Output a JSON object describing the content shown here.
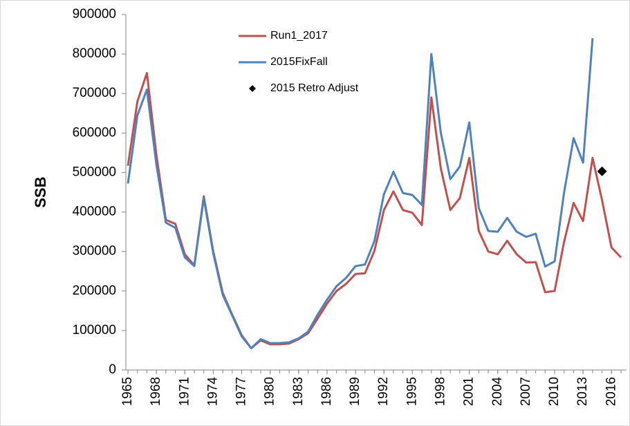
{
  "chart_data": {
    "type": "line",
    "y_label": "SSB",
    "x": [
      1965,
      1966,
      1967,
      1968,
      1969,
      1970,
      1971,
      1972,
      1973,
      1974,
      1975,
      1976,
      1977,
      1978,
      1979,
      1980,
      1981,
      1982,
      1983,
      1984,
      1985,
      1986,
      1987,
      1988,
      1989,
      1990,
      1991,
      1992,
      1993,
      1994,
      1995,
      1996,
      1997,
      1998,
      1999,
      2000,
      2001,
      2002,
      2003,
      2004,
      2005,
      2006,
      2007,
      2008,
      2009,
      2010,
      2011,
      2012,
      2013,
      2014,
      2015,
      2016,
      2017
    ],
    "series": [
      {
        "name": "Run1_2017",
        "color": "#c0504d",
        "values": [
          517000,
          680000,
          752000,
          545000,
          380000,
          370000,
          293000,
          265000,
          440000,
          300000,
          195000,
          140000,
          88000,
          55000,
          75000,
          65000,
          65000,
          67000,
          78000,
          93000,
          130000,
          168000,
          200000,
          218000,
          243000,
          245000,
          302000,
          405000,
          452000,
          405000,
          398000,
          367000,
          690000,
          510000,
          405000,
          435000,
          537000,
          352000,
          300000,
          293000,
          327000,
          293000,
          272000,
          273000,
          197000,
          200000,
          325000,
          423000,
          377000,
          537000,
          430000,
          310000,
          285000
        ]
      },
      {
        "name": "2015FixFall",
        "color": "#4f81bd",
        "values": [
          472000,
          645000,
          710000,
          520000,
          373000,
          360000,
          285000,
          263000,
          435000,
          295000,
          190000,
          138000,
          85000,
          55000,
          78000,
          68000,
          68000,
          70000,
          80000,
          97000,
          140000,
          178000,
          212000,
          233000,
          263000,
          267000,
          327000,
          445000,
          502000,
          448000,
          443000,
          418000,
          800000,
          600000,
          483000,
          515000,
          627000,
          410000,
          352000,
          350000,
          385000,
          350000,
          337000,
          345000,
          262000,
          275000,
          450000,
          587000,
          525000,
          840000,
          null,
          null,
          null
        ]
      }
    ],
    "points": {
      "name": "2015 Retro Adjust",
      "color": "#000000",
      "x": [
        2015
      ],
      "values": [
        503000
      ]
    },
    "xlim": [
      1965,
      2017
    ],
    "xticks": [
      1965,
      1968,
      1971,
      1974,
      1977,
      1980,
      1983,
      1986,
      1989,
      1992,
      1995,
      1998,
      2001,
      2004,
      2007,
      2010,
      2013,
      2016
    ],
    "ylim": [
      0,
      900000
    ],
    "yticks": [
      0,
      100000,
      200000,
      300000,
      400000,
      500000,
      600000,
      700000,
      800000,
      900000
    ]
  }
}
